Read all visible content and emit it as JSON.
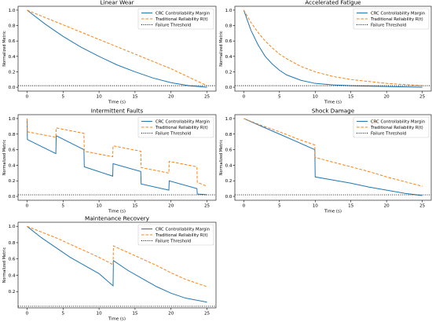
{
  "chart_data": [
    {
      "type": "line",
      "title": "Linear Wear",
      "xlabel": "Time (s)",
      "ylabel": "Normalized Metric",
      "xlim": [
        -1.25,
        26.25
      ],
      "ylim": [
        -0.05,
        1.05
      ],
      "xticks": [
        0,
        5,
        10,
        15,
        20,
        25
      ],
      "yticks": [
        0.0,
        0.2,
        0.4,
        0.6,
        0.8,
        1.0
      ],
      "legend_position": "top-right",
      "series": [
        {
          "name": "CRC Controllability Margin",
          "color": "#1f77b4",
          "style": "solid",
          "x": [
            0,
            2.5,
            5,
            7.5,
            10,
            12.5,
            15,
            17.5,
            20,
            22.5,
            25
          ],
          "y": [
            1.0,
            0.82,
            0.66,
            0.52,
            0.4,
            0.29,
            0.2,
            0.12,
            0.06,
            0.02,
            0.0
          ]
        },
        {
          "name": "Traditional Reliability R(t)",
          "color": "#ff7f0e",
          "style": "dashed",
          "x": [
            0,
            2.5,
            5,
            7.5,
            10,
            12.5,
            15,
            17.5,
            20,
            22.5,
            25
          ],
          "y": [
            1.0,
            0.905,
            0.81,
            0.715,
            0.62,
            0.525,
            0.43,
            0.335,
            0.24,
            0.13,
            0.02
          ]
        },
        {
          "name": "Failure Threshold",
          "color": "#000000",
          "style": "dotted",
          "x": [
            -1.25,
            26.25
          ],
          "y": [
            0.02,
            0.02
          ]
        }
      ]
    },
    {
      "type": "line",
      "title": "Accelerated Fatigue",
      "xlabel": "Time (s)",
      "ylabel": "Normalized Metric",
      "xlim": [
        -1.25,
        26.25
      ],
      "ylim": [
        -0.05,
        1.05
      ],
      "xticks": [
        0,
        5,
        10,
        15,
        20,
        25
      ],
      "yticks": [
        0.0,
        0.2,
        0.4,
        0.6,
        0.8,
        1.0
      ],
      "legend_position": "top-right",
      "series": [
        {
          "name": "CRC Controllability Margin",
          "color": "#1f77b4",
          "style": "solid",
          "x": [
            0,
            1,
            2,
            3,
            4,
            5,
            6,
            8,
            10,
            12.5,
            15,
            20,
            25
          ],
          "y": [
            1.0,
            0.74,
            0.55,
            0.4,
            0.3,
            0.22,
            0.16,
            0.09,
            0.05,
            0.03,
            0.02,
            0.01,
            0.0
          ]
        },
        {
          "name": "Traditional Reliability R(t)",
          "color": "#ff7f0e",
          "style": "dashed",
          "x": [
            0,
            1,
            2,
            3,
            4,
            5,
            6,
            8,
            10,
            12.5,
            15,
            20,
            25
          ],
          "y": [
            1.0,
            0.84,
            0.71,
            0.6,
            0.51,
            0.43,
            0.37,
            0.27,
            0.2,
            0.14,
            0.1,
            0.05,
            0.02
          ]
        },
        {
          "name": "Failure Threshold",
          "color": "#000000",
          "style": "dotted",
          "x": [
            -1.25,
            26.25
          ],
          "y": [
            0.02,
            0.02
          ]
        }
      ]
    },
    {
      "type": "line",
      "title": "Intermittent Faults",
      "xlabel": "Time (s)",
      "ylabel": "Normalized Metric",
      "xlim": [
        -1.25,
        26.25
      ],
      "ylim": [
        -0.05,
        1.05
      ],
      "xticks": [
        0,
        5,
        10,
        15,
        20,
        25
      ],
      "yticks": [
        0.0,
        0.2,
        0.4,
        0.6,
        0.8,
        1.0
      ],
      "legend_position": "top-right",
      "series": [
        {
          "name": "CRC Controllability Margin",
          "color": "#1f77b4",
          "style": "solid",
          "x": [
            0,
            0.05,
            4,
            4.05,
            7.9,
            7.95,
            11.9,
            11.95,
            15.8,
            15.85,
            19.7,
            19.75,
            23.6,
            23.65,
            25
          ],
          "y": [
            1.0,
            0.73,
            0.55,
            0.78,
            0.6,
            0.38,
            0.26,
            0.42,
            0.32,
            0.16,
            0.08,
            0.2,
            0.1,
            0.03,
            0.02
          ]
        },
        {
          "name": "Traditional Reliability R(t)",
          "color": "#ff7f0e",
          "style": "dashed",
          "x": [
            0,
            0.05,
            4,
            4.05,
            7.9,
            7.95,
            11.9,
            11.95,
            15.8,
            15.85,
            19.7,
            19.75,
            23.6,
            23.65,
            25
          ],
          "y": [
            1.0,
            0.83,
            0.76,
            0.88,
            0.81,
            0.58,
            0.51,
            0.65,
            0.58,
            0.37,
            0.3,
            0.45,
            0.38,
            0.18,
            0.13
          ]
        },
        {
          "name": "Failure Threshold",
          "color": "#000000",
          "style": "dotted",
          "x": [
            -1.25,
            26.25
          ],
          "y": [
            0.02,
            0.02
          ]
        }
      ]
    },
    {
      "type": "line",
      "title": "Shock Damage",
      "xlabel": "Time (s)",
      "ylabel": "Normalized Metric",
      "xlim": [
        -1.25,
        26.25
      ],
      "ylim": [
        -0.05,
        1.05
      ],
      "xticks": [
        0,
        5,
        10,
        15,
        20,
        25
      ],
      "yticks": [
        0.0,
        0.2,
        0.4,
        0.6,
        0.8,
        1.0
      ],
      "legend_position": "top-right",
      "series": [
        {
          "name": "CRC Controllability Margin",
          "color": "#1f77b4",
          "style": "solid",
          "x": [
            0,
            2.5,
            5,
            7.5,
            9.95,
            10.0,
            12.5,
            15,
            17.5,
            20,
            22.5,
            25
          ],
          "y": [
            1.0,
            0.9,
            0.8,
            0.7,
            0.6,
            0.25,
            0.21,
            0.17,
            0.12,
            0.08,
            0.04,
            0.01
          ]
        },
        {
          "name": "Traditional Reliability R(t)",
          "color": "#ff7f0e",
          "style": "dashed",
          "x": [
            0,
            2.5,
            5,
            7.5,
            9.95,
            10.0,
            12.5,
            15,
            17.5,
            20,
            22.5,
            25
          ],
          "y": [
            1.0,
            0.91,
            0.83,
            0.74,
            0.66,
            0.5,
            0.44,
            0.38,
            0.32,
            0.25,
            0.19,
            0.13
          ]
        },
        {
          "name": "Failure Threshold",
          "color": "#000000",
          "style": "dotted",
          "x": [
            -1.25,
            26.25
          ],
          "y": [
            0.02,
            0.02
          ]
        }
      ]
    },
    {
      "type": "line",
      "title": "Maintenance Recovery",
      "xlabel": "Time (s)",
      "ylabel": "Normalized Metric",
      "xlim": [
        -1.25,
        26.25
      ],
      "ylim": [
        0.0,
        1.05
      ],
      "xticks": [
        0,
        5,
        10,
        15,
        20,
        25
      ],
      "yticks": [
        0.2,
        0.4,
        0.6,
        0.8,
        1.0
      ],
      "legend_position": "top-right",
      "series": [
        {
          "name": "CRC Controllability Margin",
          "color": "#1f77b4",
          "style": "solid",
          "x": [
            0,
            2,
            4,
            6,
            8,
            10,
            11.95,
            12.0,
            14,
            16,
            18,
            20,
            22,
            25
          ],
          "y": [
            1.0,
            0.86,
            0.74,
            0.62,
            0.52,
            0.42,
            0.27,
            0.58,
            0.46,
            0.36,
            0.26,
            0.18,
            0.12,
            0.07
          ]
        },
        {
          "name": "Traditional Reliability R(t)",
          "color": "#ff7f0e",
          "style": "dashed",
          "x": [
            0,
            2,
            4,
            6,
            8,
            10,
            11.95,
            12.0,
            14,
            16,
            18,
            20,
            22,
            25
          ],
          "y": [
            1.0,
            0.93,
            0.86,
            0.78,
            0.7,
            0.62,
            0.53,
            0.76,
            0.68,
            0.6,
            0.52,
            0.43,
            0.35,
            0.26
          ]
        },
        {
          "name": "Failure Threshold",
          "color": "#000000",
          "style": "dotted",
          "x": [
            -1.25,
            26.25
          ],
          "y": [
            0.02,
            0.02
          ]
        }
      ]
    }
  ]
}
